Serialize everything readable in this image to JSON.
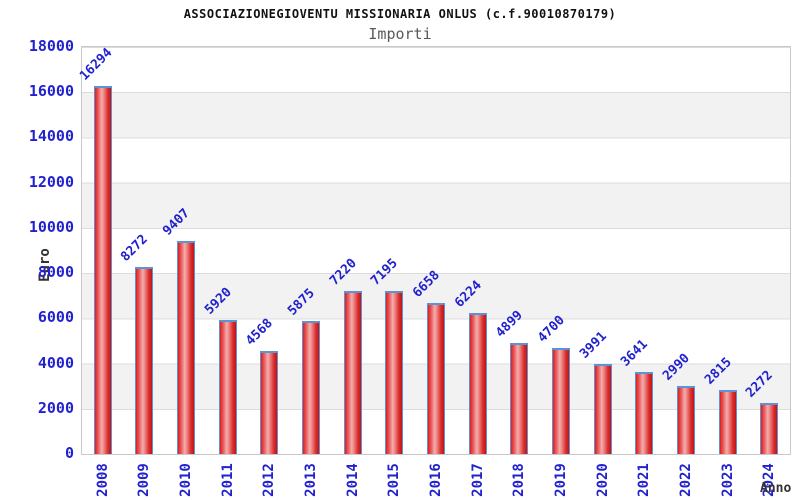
{
  "header": {
    "title": "ASSOCIAZIONEGIOVENTU MISSIONARIA ONLUS (c.f.90010870179)",
    "subtitle": "Importi"
  },
  "chart_data": {
    "type": "bar",
    "title": "ASSOCIAZIONEGIOVENTU MISSIONARIA ONLUS (c.f.90010870179)",
    "subtitle": "Importi",
    "xlabel": "Anno",
    "ylabel": "Euro",
    "categories": [
      "2008",
      "2009",
      "2010",
      "2011",
      "2012",
      "2013",
      "2014",
      "2015",
      "2016",
      "2017",
      "2018",
      "2019",
      "2020",
      "2021",
      "2022",
      "2023",
      "2024"
    ],
    "values": [
      16294,
      8272,
      9407,
      5920,
      4568,
      5875,
      7220,
      7195,
      6658,
      6224,
      4899,
      4700,
      3991,
      3641,
      2990,
      2815,
      2272
    ],
    "ylim": [
      0,
      18000
    ],
    "ytick_step": 2000,
    "grid": "horizontal gridlines with alternating white/gray bands",
    "legend_position": "none",
    "colors": {
      "bar_fill": "#df1f1f",
      "bar_fill_highlight": "#f5adad",
      "bar_border": "#5b93d5",
      "tick_label": "#2222cc",
      "value_label": "#2222cc",
      "title": "#111111",
      "subtitle": "#5a5a5a",
      "axis_name": "#333333",
      "band_gray": "#f2f2f2",
      "gridline": "#dcdcdc"
    }
  }
}
